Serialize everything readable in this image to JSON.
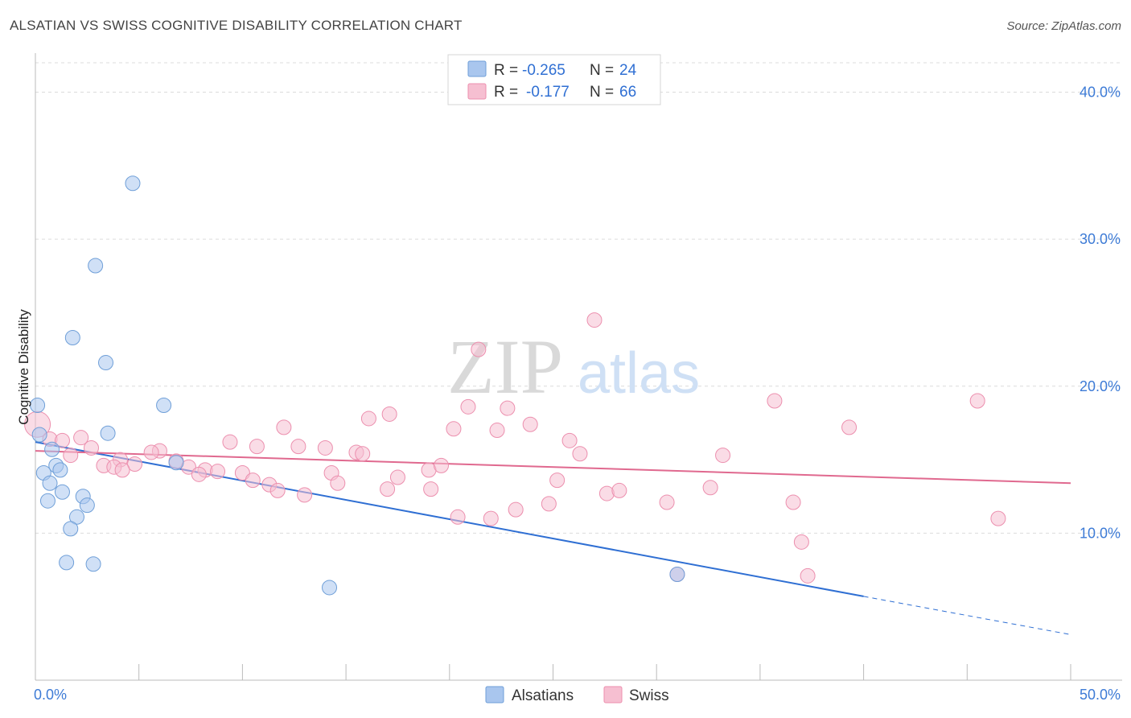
{
  "title": "ALSATIAN VS SWISS COGNITIVE DISABILITY CORRELATION CHART",
  "source": "Source: ZipAtlas.com",
  "watermark": {
    "part1": "ZIP",
    "part2": "atlas"
  },
  "chart_data": {
    "type": "scatter",
    "ylabel": "Cognitive Disability",
    "xlim": [
      0,
      50
    ],
    "ylim": [
      0,
      42
    ],
    "x_tick_labels": [
      "0.0%",
      "50.0%"
    ],
    "y_ticks": [
      10,
      20,
      30,
      40
    ],
    "y_tick_labels": [
      "10.0%",
      "20.0%",
      "30.0%",
      "40.0%"
    ],
    "grid": true,
    "legend_position": "top-center",
    "stats_legend": [
      {
        "r_label": "R =",
        "r_value": "-0.265",
        "n_label": "N =",
        "n_value": "24"
      },
      {
        "r_label": "R =",
        "r_value": "-0.177",
        "n_label": "N =",
        "n_value": "66"
      }
    ],
    "series": [
      {
        "name": "Alsatians",
        "color": "#a9c6ee",
        "edge_color": "#6f9fd8",
        "line_color": "#2f6fd3",
        "trend": {
          "x0": 0,
          "y0": 16.2,
          "x1": 40,
          "y1": 5.7,
          "dash_to_x": 50,
          "dash_to_y": 3.1
        },
        "points": [
          [
            4.7,
            33.8
          ],
          [
            2.9,
            28.2
          ],
          [
            1.8,
            23.3
          ],
          [
            3.4,
            21.6
          ],
          [
            6.2,
            18.7
          ],
          [
            0.1,
            18.7
          ],
          [
            0.2,
            16.7
          ],
          [
            3.5,
            16.8
          ],
          [
            0.8,
            15.7
          ],
          [
            1.0,
            14.6
          ],
          [
            1.2,
            14.3
          ],
          [
            0.4,
            14.1
          ],
          [
            6.8,
            14.8
          ],
          [
            0.7,
            13.4
          ],
          [
            1.3,
            12.8
          ],
          [
            2.3,
            12.5
          ],
          [
            0.6,
            12.2
          ],
          [
            2.5,
            11.9
          ],
          [
            2.0,
            11.1
          ],
          [
            1.7,
            10.3
          ],
          [
            1.5,
            8.0
          ],
          [
            2.8,
            7.9
          ],
          [
            14.2,
            6.3
          ],
          [
            31.0,
            7.2
          ]
        ]
      },
      {
        "name": "Swiss",
        "color": "#f6bfd1",
        "edge_color": "#ec8fae",
        "line_color": "#e0698f",
        "trend": {
          "x0": 0,
          "y0": 15.6,
          "x1": 50,
          "y1": 13.4
        },
        "points": [
          [
            0.1,
            17.4
          ],
          [
            27.0,
            24.5
          ],
          [
            21.4,
            22.5
          ],
          [
            20.9,
            18.6
          ],
          [
            22.8,
            18.5
          ],
          [
            17.1,
            18.1
          ],
          [
            16.1,
            17.8
          ],
          [
            35.7,
            19.0
          ],
          [
            45.5,
            19.0
          ],
          [
            12.0,
            17.2
          ],
          [
            20.2,
            17.1
          ],
          [
            22.3,
            17.0
          ],
          [
            23.9,
            17.4
          ],
          [
            39.3,
            17.2
          ],
          [
            0.7,
            16.4
          ],
          [
            1.3,
            16.3
          ],
          [
            2.2,
            16.5
          ],
          [
            9.4,
            16.2
          ],
          [
            10.7,
            15.9
          ],
          [
            12.7,
            15.9
          ],
          [
            14.0,
            15.8
          ],
          [
            25.8,
            16.3
          ],
          [
            2.7,
            15.8
          ],
          [
            6.0,
            15.6
          ],
          [
            1.7,
            15.3
          ],
          [
            5.6,
            15.5
          ],
          [
            15.5,
            15.5
          ],
          [
            15.8,
            15.4
          ],
          [
            26.3,
            15.4
          ],
          [
            33.2,
            15.3
          ],
          [
            4.1,
            15.0
          ],
          [
            3.3,
            14.6
          ],
          [
            4.8,
            14.7
          ],
          [
            6.8,
            14.9
          ],
          [
            7.4,
            14.5
          ],
          [
            3.8,
            14.5
          ],
          [
            8.2,
            14.3
          ],
          [
            8.8,
            14.2
          ],
          [
            4.2,
            14.3
          ],
          [
            7.9,
            14.0
          ],
          [
            10.0,
            14.1
          ],
          [
            14.3,
            14.1
          ],
          [
            19.0,
            14.3
          ],
          [
            19.6,
            14.6
          ],
          [
            10.5,
            13.6
          ],
          [
            17.5,
            13.8
          ],
          [
            25.2,
            13.6
          ],
          [
            11.3,
            13.3
          ],
          [
            14.6,
            13.4
          ],
          [
            11.7,
            12.9
          ],
          [
            17.0,
            13.0
          ],
          [
            19.1,
            13.0
          ],
          [
            27.6,
            12.7
          ],
          [
            28.2,
            12.9
          ],
          [
            32.6,
            13.1
          ],
          [
            13.0,
            12.6
          ],
          [
            36.6,
            12.1
          ],
          [
            30.5,
            12.1
          ],
          [
            24.8,
            12.0
          ],
          [
            23.2,
            11.6
          ],
          [
            20.4,
            11.1
          ],
          [
            22.0,
            11.0
          ],
          [
            46.5,
            11.0
          ],
          [
            37.0,
            9.4
          ],
          [
            31.0,
            7.2
          ],
          [
            37.3,
            7.1
          ]
        ]
      }
    ]
  }
}
